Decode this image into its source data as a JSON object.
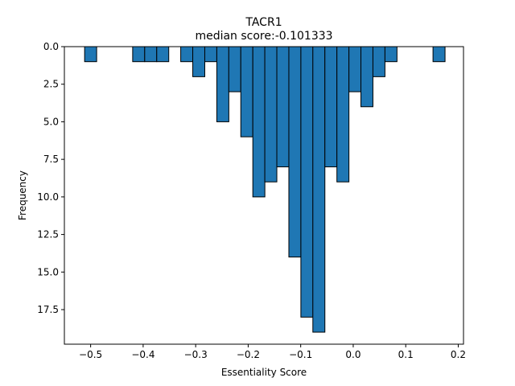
{
  "chart_data": {
    "type": "bar",
    "title": "TACR1",
    "subtitle": "median score:-0.101333",
    "xlabel": "Essentiality Score",
    "ylabel": "Frequency",
    "xlim": [
      -0.55,
      0.21
    ],
    "ylim": [
      19.8,
      0
    ],
    "y_inverted": true,
    "grid": false,
    "bar_color": "#1f77b4",
    "edge_color": "#000000",
    "bin_width": 0.0229,
    "bins": [
      {
        "x": -0.5,
        "value": 1
      },
      {
        "x": -0.4085,
        "value": 1
      },
      {
        "x": -0.3856,
        "value": 1
      },
      {
        "x": -0.3627,
        "value": 1
      },
      {
        "x": -0.317,
        "value": 1
      },
      {
        "x": -0.2941,
        "value": 2
      },
      {
        "x": -0.2712,
        "value": 1
      },
      {
        "x": -0.2483,
        "value": 5
      },
      {
        "x": -0.2255,
        "value": 3
      },
      {
        "x": -0.2026,
        "value": 6
      },
      {
        "x": -0.1797,
        "value": 10
      },
      {
        "x": -0.1569,
        "value": 9
      },
      {
        "x": -0.134,
        "value": 8
      },
      {
        "x": -0.1111,
        "value": 14
      },
      {
        "x": -0.0882,
        "value": 18
      },
      {
        "x": -0.0654,
        "value": 19
      },
      {
        "x": -0.0425,
        "value": 8
      },
      {
        "x": -0.0196,
        "value": 9
      },
      {
        "x": 0.0033,
        "value": 3
      },
      {
        "x": 0.0261,
        "value": 4
      },
      {
        "x": 0.049,
        "value": 2
      },
      {
        "x": 0.0719,
        "value": 1
      },
      {
        "x": 0.1634,
        "value": 1
      }
    ],
    "x_ticks": [
      -0.5,
      -0.4,
      -0.3,
      -0.2,
      -0.1,
      0.0,
      0.1,
      0.2
    ],
    "x_tick_labels": [
      "−0.5",
      "−0.4",
      "−0.3",
      "−0.2",
      "−0.1",
      "0.0",
      "0.1",
      "0.2"
    ],
    "y_ticks": [
      0,
      2.5,
      5,
      7.5,
      10,
      12.5,
      15,
      17.5
    ],
    "y_tick_labels": [
      "0.0",
      "2.5",
      "5.0",
      "7.5",
      "10.0",
      "12.5",
      "15.0",
      "17.5"
    ]
  }
}
